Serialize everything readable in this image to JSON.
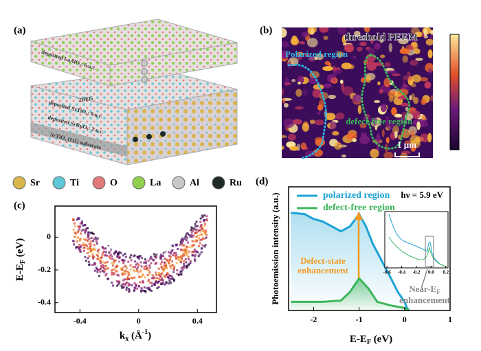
{
  "panels": {
    "a": {
      "label": "(a)",
      "layers": [
        "deposited LaAlO₃: 6 u.c.",
        "2DEG",
        "deposited SrTiO₃: 6 u.c.",
        "deposited SrRuO₃: 2 u.c.",
        "SrTiO₃ (111) substrate"
      ],
      "legend": [
        {
          "name": "Sr",
          "color": "#d9b54a"
        },
        {
          "name": "Ti",
          "color": "#5fc8d8"
        },
        {
          "name": "O",
          "color": "#e07a7a"
        },
        {
          "name": "La",
          "color": "#8fd14f"
        },
        {
          "name": "Al",
          "color": "#c8c8c8"
        },
        {
          "name": "Ru",
          "color": "#1e2a28"
        }
      ]
    },
    "b": {
      "label": "(b)",
      "title": "threshold PEEM",
      "regions": [
        {
          "text": "Polarized region",
          "color": "#2cb5e0"
        },
        {
          "text": "defect-free region",
          "color": "#3cb55a"
        }
      ],
      "scale_bar": "1 μm"
    },
    "c": {
      "label": "(c)",
      "xlabel": [
        "k",
        "x",
        " (Å",
        "-1",
        ")"
      ],
      "ylabel": [
        "E-E",
        "F",
        " (eV)"
      ],
      "xlim": [
        -0.57,
        0.53
      ],
      "ylim": [
        -0.46,
        0.19
      ],
      "xticks": [
        -0.4,
        0,
        0.4
      ],
      "yticks": [
        0,
        -0.2,
        -0.4
      ]
    },
    "d": {
      "label": "(d)",
      "type": "line",
      "ylabel": "Photoemission intensity (a.u.)",
      "xlabel": [
        "E-E",
        "F",
        " (eV)"
      ],
      "xlim": [
        -2.55,
        1
      ],
      "ylim": [
        0,
        1
      ],
      "xticks": [
        -2,
        -1,
        0,
        1
      ],
      "series": [
        {
          "name": "polarized region",
          "color": "#1ba3d6",
          "x": [
            -2.5,
            -2.2,
            -2.0,
            -1.8,
            -1.6,
            -1.4,
            -1.2,
            -1.0,
            -0.85,
            -0.7,
            -0.5,
            -0.3,
            -0.15,
            0,
            0.05,
            0.1
          ],
          "values": [
            0.79,
            0.78,
            0.74,
            0.72,
            0.68,
            0.64,
            0.68,
            0.78,
            0.68,
            0.54,
            0.4,
            0.26,
            0.15,
            0.07,
            0.02,
            0
          ]
        },
        {
          "name": "defect-free region",
          "color": "#3cb55a",
          "x": [
            -2.5,
            -1.8,
            -1.4,
            -1.2,
            -1.0,
            -0.8,
            -0.6,
            -0.3,
            0,
            0.1
          ],
          "values": [
            0.07,
            0.07,
            0.08,
            0.15,
            0.26,
            0.18,
            0.07,
            0.04,
            0.02,
            0
          ]
        }
      ],
      "hv": "hν = 5.9 eV",
      "annotations": [
        [
          "Defect-state",
          "enhancement"
        ],
        [
          "Near-E",
          "F",
          "enhancement"
        ]
      ],
      "inset": {
        "xlim": [
          -0.63,
          0.23
        ],
        "xticks": [
          -0.6,
          -0.4,
          -0.2,
          {
            "value": 0,
            "label": "0.0"
          },
          0.2
        ]
      }
    }
  }
}
